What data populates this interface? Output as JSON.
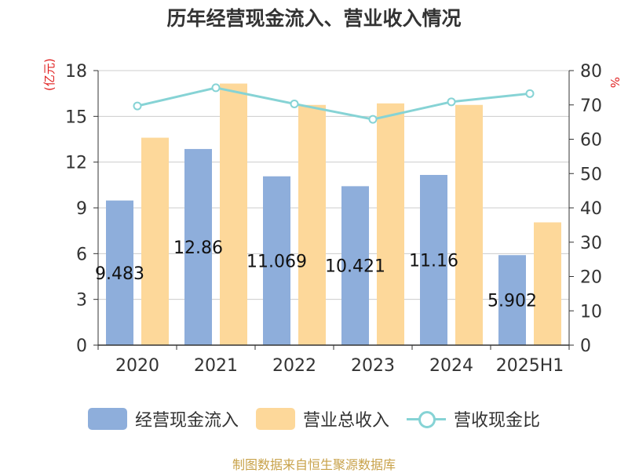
{
  "chart_data": {
    "type": "bar",
    "title": "历年经营现金流入、营业收入情况",
    "categories": [
      "2020",
      "2021",
      "2022",
      "2023",
      "2024",
      "2025H1"
    ],
    "y_left": {
      "label": "(亿元)",
      "ylim": [
        0,
        18
      ],
      "ticks": [
        0,
        3,
        6,
        9,
        12,
        15,
        18
      ]
    },
    "y_right": {
      "label": "%",
      "ylim": [
        0,
        80
      ],
      "ticks": [
        0,
        10,
        20,
        30,
        40,
        50,
        60,
        70,
        80
      ]
    },
    "series": [
      {
        "name": "经营现金流入",
        "type": "bar",
        "axis": "left",
        "color": "#8eaedb",
        "values": [
          9.483,
          12.86,
          11.069,
          10.421,
          11.16,
          5.902
        ],
        "labels": [
          "9.483",
          "12.86",
          "11.069",
          "10.421",
          "11.16",
          "5.902"
        ]
      },
      {
        "name": "营业总收入",
        "type": "bar",
        "axis": "left",
        "color": "#fdd89a",
        "values": [
          13.6,
          17.15,
          15.75,
          15.85,
          15.75,
          8.05
        ]
      },
      {
        "name": "营收现金比",
        "type": "line",
        "axis": "right",
        "color": "#86d3d5",
        "values": [
          69.7,
          75.0,
          70.3,
          65.8,
          70.9,
          73.3
        ]
      }
    ],
    "grid": true,
    "legend": "bottom"
  },
  "legend": [
    {
      "name": "经营现金流入",
      "kind": "bar",
      "color": "#8eaedb"
    },
    {
      "name": "营业总收入",
      "kind": "bar",
      "color": "#fdd89a"
    },
    {
      "name": "营收现金比",
      "kind": "line",
      "color": "#86d3d5"
    }
  ],
  "source": "制图数据来自恒生聚源数据库"
}
